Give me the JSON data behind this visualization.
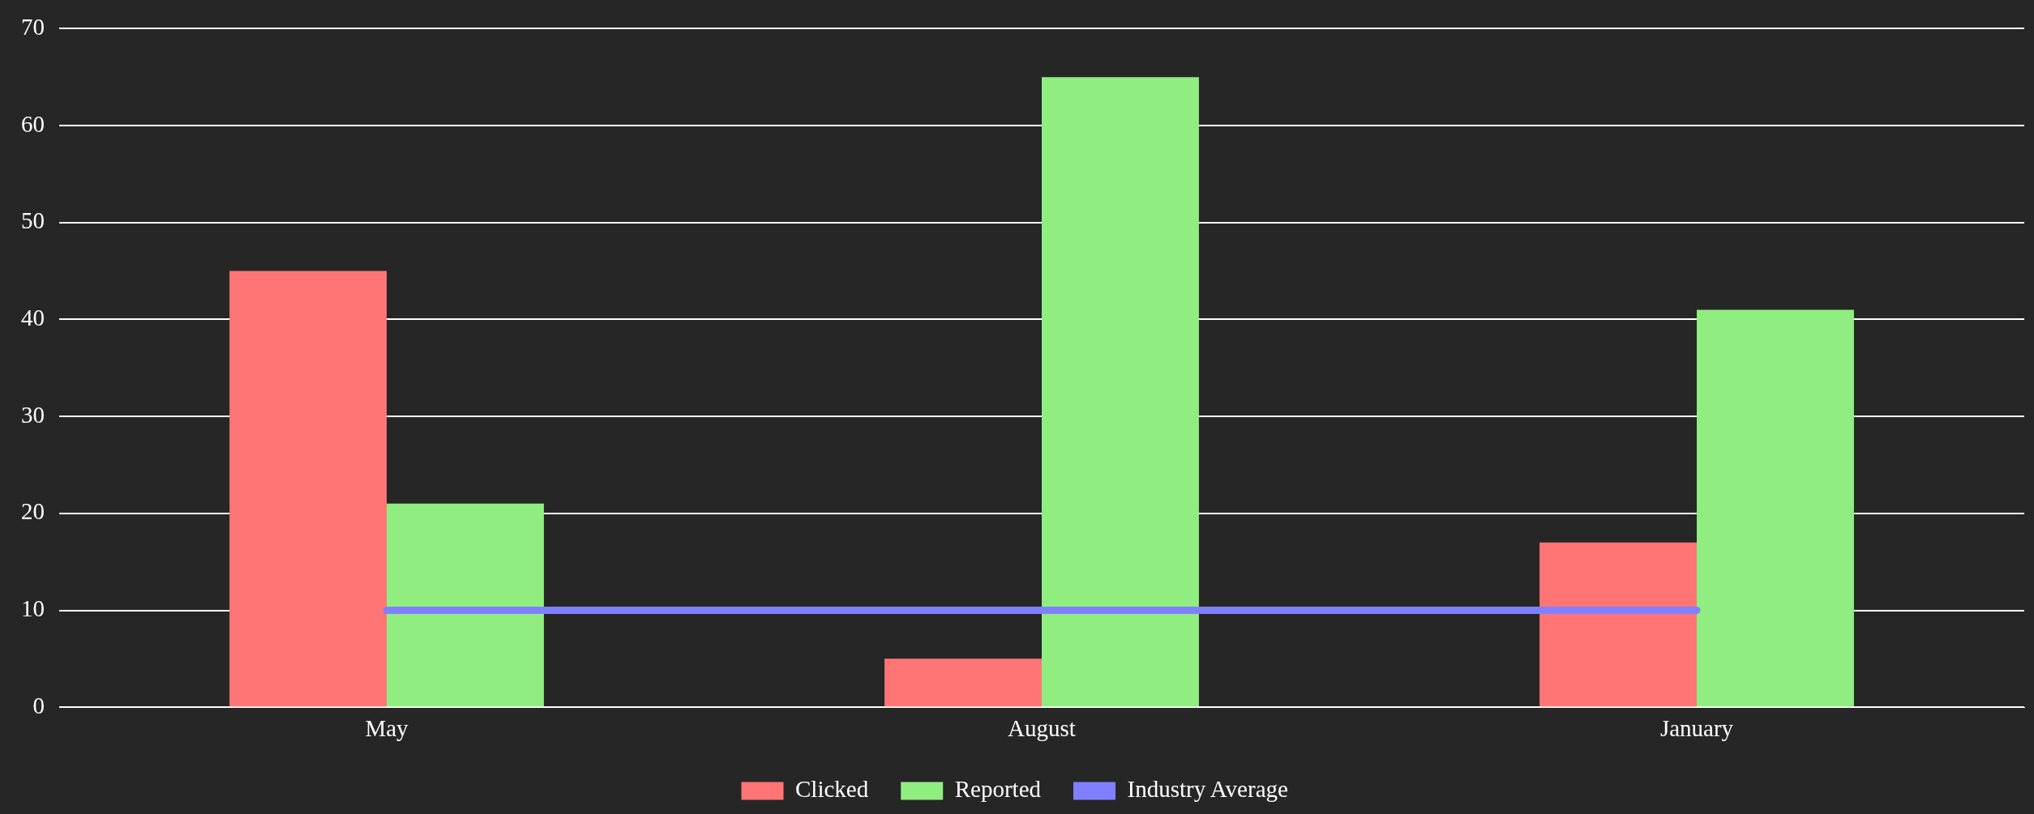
{
  "chart_data": {
    "type": "bar",
    "categories": [
      "May",
      "August",
      "January"
    ],
    "series": [
      {
        "name": "Clicked",
        "color": "#ff7575",
        "values": [
          45,
          5,
          17
        ]
      },
      {
        "name": "Reported",
        "color": "#90ee80",
        "values": [
          21,
          65,
          41
        ]
      },
      {
        "name": "Industry Average",
        "type": "line",
        "color": "#8080ff",
        "values": [
          10,
          10,
          10
        ],
        "marker": "none"
      }
    ],
    "ylim": [
      0,
      70
    ],
    "yticks": [
      0,
      10,
      20,
      30,
      40,
      50,
      60,
      70
    ],
    "grid": "y",
    "legend": "bottom"
  }
}
